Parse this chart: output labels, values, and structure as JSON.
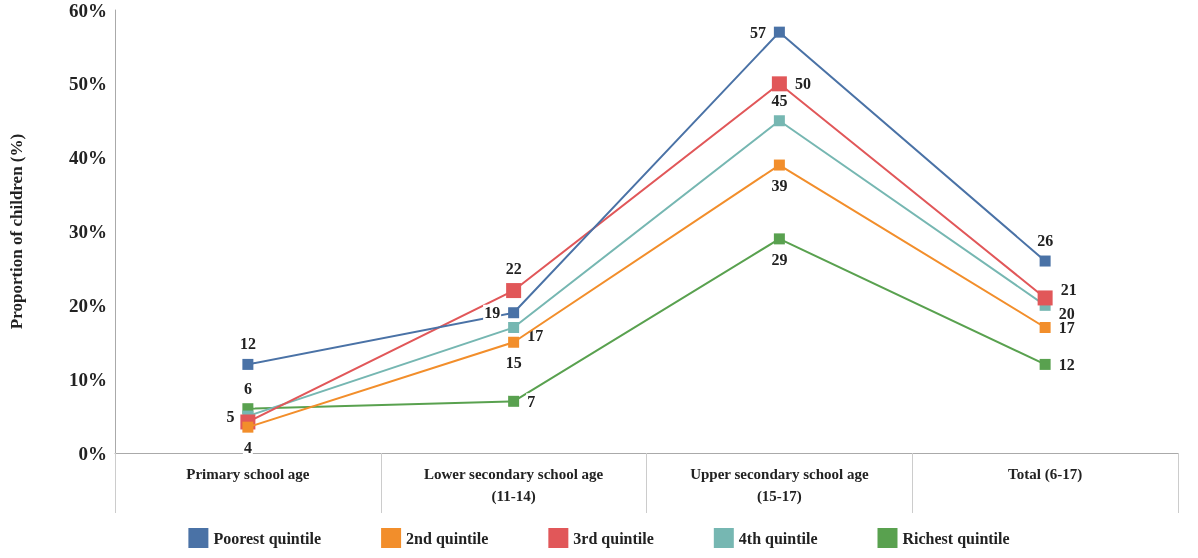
{
  "chart_data": {
    "type": "line",
    "ylabel": "Proportion of children (%)",
    "categories": [
      "Primary school age",
      "Lower secondary school age\n(11-14)",
      "Upper secondary school age\n(15-17)",
      "Total (6-17)"
    ],
    "series": [
      {
        "name": "Poorest quintile",
        "color": "#4a72a6",
        "values": [
          12,
          19,
          57,
          26
        ],
        "value_labels": [
          "12",
          "19",
          "57",
          "26"
        ]
      },
      {
        "name": "2nd quintile",
        "color": "#f28e2b",
        "values": [
          3.5,
          15,
          39,
          17
        ],
        "value_labels": [
          "4",
          "15",
          "39",
          "17"
        ]
      },
      {
        "name": "3rd quintile",
        "color": "#e15759",
        "values": [
          4.2,
          22,
          50,
          21
        ],
        "value_labels": [
          null,
          "22",
          "50",
          "21"
        ]
      },
      {
        "name": "4th quintile",
        "color": "#76b7b2",
        "values": [
          5,
          17,
          45,
          20
        ],
        "value_labels": [
          "5",
          "17",
          "45",
          "20"
        ]
      },
      {
        "name": "Richest quintile",
        "color": "#59a14f",
        "values": [
          6,
          7,
          29,
          12
        ],
        "value_labels": [
          "6",
          "7",
          "29",
          "12"
        ]
      }
    ],
    "ylim": [
      0,
      60
    ],
    "yticks": [
      {
        "value": 0,
        "label": "0%"
      },
      {
        "value": 10,
        "label": "10%"
      },
      {
        "value": 20,
        "label": "20%"
      },
      {
        "value": 30,
        "label": "30%"
      },
      {
        "value": 40,
        "label": "40%"
      },
      {
        "value": 50,
        "label": "50%"
      },
      {
        "value": 60,
        "label": "60%"
      }
    ],
    "grid": false,
    "legend": "bottom",
    "marker": "square",
    "line_style": "solid"
  }
}
